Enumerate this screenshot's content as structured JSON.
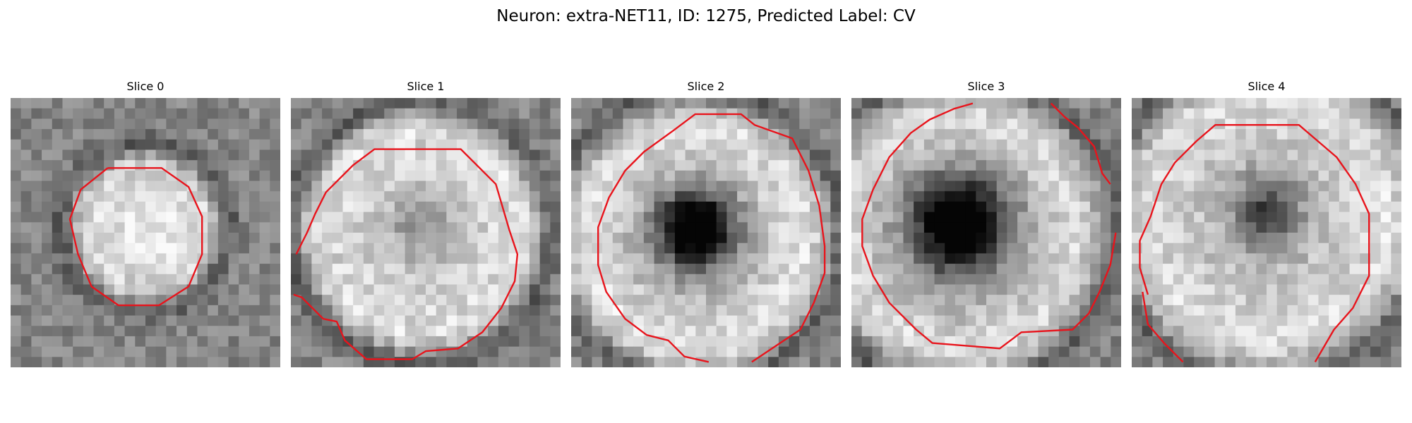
{
  "figure": {
    "title": "Neuron: extra-NET11, ID: 1275, Predicted Label: CV"
  },
  "panels": [
    {
      "title": "Slice 0"
    },
    {
      "title": "Slice 1"
    },
    {
      "title": "Slice 2"
    },
    {
      "title": "Slice 3"
    },
    {
      "title": "Slice 4"
    }
  ],
  "contour_color": "#e8141c",
  "colormap": "gray"
}
